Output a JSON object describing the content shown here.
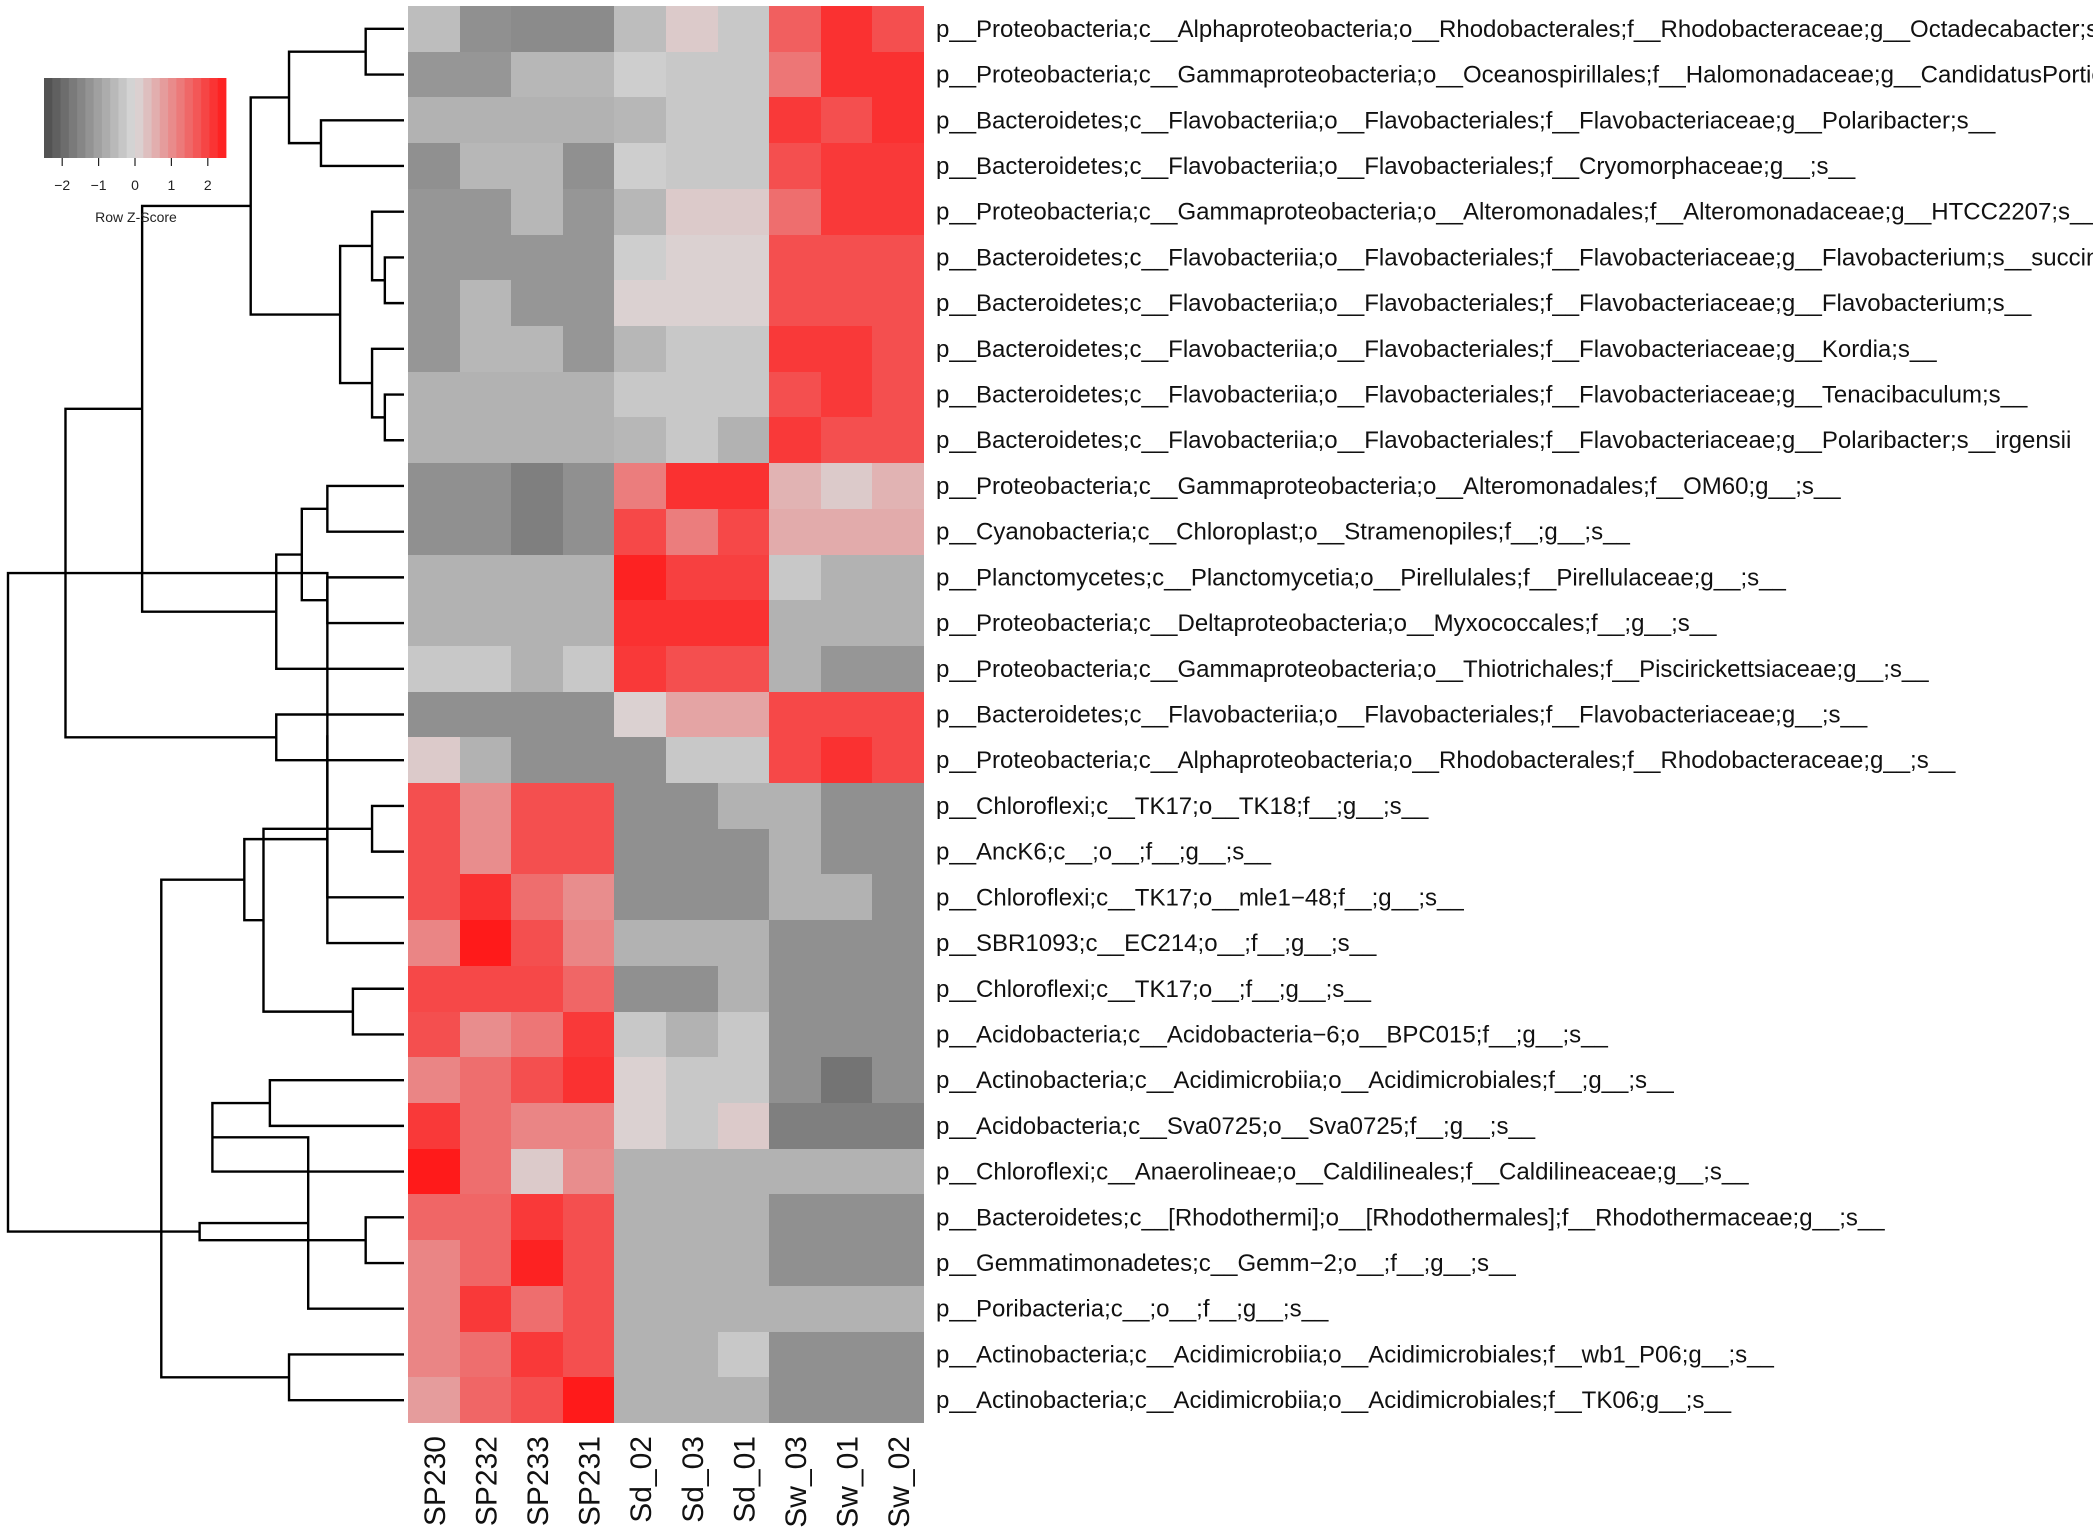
{
  "chart_data": {
    "type": "heatmap",
    "title": "",
    "columns": [
      "SP230",
      "SP232",
      "SP233",
      "SP231",
      "Sd_02",
      "Sd_03",
      "Sd_01",
      "Sw_03",
      "Sw_01",
      "Sw_02"
    ],
    "rows": [
      "p__Proteobacteria;c__Alphaproteobacteria;o__Rhodobacterales;f__Rhodobacteraceae;g__Octadecabacter;s__",
      "p__Proteobacteria;c__Gammaproteobacteria;o__Oceanospirillales;f__Halomonadaceae;g__CandidatusPortiera;s__",
      "p__Bacteroidetes;c__Flavobacteriia;o__Flavobacteriales;f__Flavobacteriaceae;g__Polaribacter;s__",
      "p__Bacteroidetes;c__Flavobacteriia;o__Flavobacteriales;f__Cryomorphaceae;g__;s__",
      "p__Proteobacteria;c__Gammaproteobacteria;o__Alteromonadales;f__Alteromonadaceae;g__HTCC2207;s__",
      "p__Bacteroidetes;c__Flavobacteriia;o__Flavobacteriales;f__Flavobacteriaceae;g__Flavobacterium;s__succinicans",
      "p__Bacteroidetes;c__Flavobacteriia;o__Flavobacteriales;f__Flavobacteriaceae;g__Flavobacterium;s__",
      "p__Bacteroidetes;c__Flavobacteriia;o__Flavobacteriales;f__Flavobacteriaceae;g__Kordia;s__",
      "p__Bacteroidetes;c__Flavobacteriia;o__Flavobacteriales;f__Flavobacteriaceae;g__Tenacibaculum;s__",
      "p__Bacteroidetes;c__Flavobacteriia;o__Flavobacteriales;f__Flavobacteriaceae;g__Polaribacter;s__irgensii",
      "p__Proteobacteria;c__Gammaproteobacteria;o__Alteromonadales;f__OM60;g__;s__",
      "p__Cyanobacteria;c__Chloroplast;o__Stramenopiles;f__;g__;s__",
      "p__Planctomycetes;c__Planctomycetia;o__Pirellulales;f__Pirellulaceae;g__;s__",
      "p__Proteobacteria;c__Deltaproteobacteria;o__Myxococcales;f__;g__;s__",
      "p__Proteobacteria;c__Gammaproteobacteria;o__Thiotrichales;f__Piscirickettsiaceae;g__;s__",
      "p__Bacteroidetes;c__Flavobacteriia;o__Flavobacteriales;f__Flavobacteriaceae;g__;s__",
      "p__Proteobacteria;c__Alphaproteobacteria;o__Rhodobacterales;f__Rhodobacteraceae;g__;s__",
      "p__Chloroflexi;c__TK17;o__TK18;f__;g__;s__",
      "p__AncK6;c__;o__;f__;g__;s__",
      "p__Chloroflexi;c__TK17;o__mle1−48;f__;g__;s__",
      "p__SBR1093;c__EC214;o__;f__;g__;s__",
      "p__Chloroflexi;c__TK17;o__;f__;g__;s__",
      "p__Acidobacteria;c__Acidobacteria−6;o__BPC015;f__;g__;s__",
      "p__Actinobacteria;c__Acidimicrobiia;o__Acidimicrobiales;f__;g__;s__",
      "p__Acidobacteria;c__Sva0725;o__Sva0725;f__;g__;s__",
      "p__Chloroflexi;c__Anaerolineae;o__Caldilineales;f__Caldilineaceae;g__;s__",
      "p__Bacteroidetes;c__[Rhodothermi];o__[Rhodothermales];f__Rhodothermaceae;g__;s__",
      "p__Gemmatimonadetes;c__Gemm−2;o__;f__;g__;s__",
      "p__Poribacteria;c__;o__;f__;g__;s__",
      "p__Actinobacteria;c__Acidimicrobiia;o__Acidimicrobiales;f__wb1_P06;g__;s__",
      "p__Actinobacteria;c__Acidimicrobiia;o__Acidimicrobiales;f__TK06;g__;s__"
    ],
    "values": [
      [
        -0.5,
        -1.3,
        -1.4,
        -1.4,
        -0.5,
        0.2,
        -0.3,
        1.6,
        2.2,
        1.8
      ],
      [
        -1.2,
        -1.2,
        -0.6,
        -0.6,
        -0.2,
        -0.3,
        -0.3,
        1.3,
        2.2,
        2.2
      ],
      [
        -0.7,
        -0.7,
        -0.7,
        -0.7,
        -0.6,
        -0.3,
        -0.3,
        2.1,
        1.8,
        2.2
      ],
      [
        -1.3,
        -0.6,
        -0.6,
        -1.3,
        -0.2,
        -0.3,
        -0.3,
        1.8,
        2.1,
        2.1
      ],
      [
        -1.2,
        -1.2,
        -0.6,
        -1.2,
        -0.6,
        0.2,
        0.2,
        1.4,
        2.1,
        2.1
      ],
      [
        -1.2,
        -1.2,
        -1.2,
        -1.2,
        -0.2,
        0.1,
        0.1,
        1.8,
        1.8,
        1.8
      ],
      [
        -1.2,
        -0.6,
        -1.2,
        -1.2,
        0.1,
        0.1,
        0.1,
        1.8,
        1.8,
        1.8
      ],
      [
        -1.2,
        -0.6,
        -0.6,
        -1.2,
        -0.6,
        -0.3,
        -0.3,
        2.1,
        2.1,
        1.8
      ],
      [
        -0.7,
        -0.7,
        -0.7,
        -0.7,
        -0.3,
        -0.3,
        -0.3,
        1.8,
        2.1,
        1.8
      ],
      [
        -0.7,
        -0.7,
        -0.7,
        -0.7,
        -0.6,
        -0.3,
        -0.7,
        2.1,
        1.8,
        1.8
      ],
      [
        -1.3,
        -1.3,
        -1.6,
        -1.3,
        1.2,
        2.2,
        2.2,
        0.5,
        0.2,
        0.5
      ],
      [
        -1.3,
        -1.3,
        -1.6,
        -1.3,
        1.9,
        1.2,
        1.9,
        0.6,
        0.6,
        0.6
      ],
      [
        -0.7,
        -0.7,
        -0.7,
        -0.7,
        2.4,
        2.0,
        2.0,
        -0.3,
        -0.7,
        -0.7
      ],
      [
        -0.7,
        -0.7,
        -0.7,
        -0.7,
        2.2,
        2.2,
        2.2,
        -0.7,
        -0.7,
        -0.7
      ],
      [
        -0.3,
        -0.3,
        -0.7,
        -0.3,
        2.1,
        1.8,
        1.8,
        -0.7,
        -1.2,
        -1.2
      ],
      [
        -1.3,
        -1.3,
        -1.3,
        -1.3,
        0.1,
        0.7,
        0.7,
        1.9,
        1.9,
        1.9
      ],
      [
        0.2,
        -0.7,
        -1.3,
        -1.3,
        -1.3,
        -0.3,
        -0.3,
        1.9,
        2.2,
        1.9
      ],
      [
        1.8,
        1.0,
        1.8,
        1.8,
        -1.3,
        -1.3,
        -0.7,
        -0.7,
        -1.3,
        -1.3
      ],
      [
        1.8,
        1.0,
        1.8,
        1.8,
        -1.3,
        -1.3,
        -1.3,
        -0.7,
        -1.3,
        -1.3
      ],
      [
        1.8,
        2.2,
        1.4,
        1.0,
        -1.3,
        -1.3,
        -1.3,
        -0.7,
        -0.7,
        -1.3
      ],
      [
        1.1,
        2.5,
        1.8,
        1.1,
        -0.7,
        -0.7,
        -0.7,
        -1.3,
        -1.3,
        -1.3
      ],
      [
        1.9,
        1.9,
        1.9,
        1.5,
        -1.3,
        -1.3,
        -0.7,
        -1.3,
        -1.3,
        -1.3
      ],
      [
        1.8,
        1.0,
        1.3,
        2.1,
        -0.3,
        -0.7,
        -0.3,
        -1.3,
        -1.3,
        -1.3
      ],
      [
        1.1,
        1.4,
        1.8,
        2.2,
        0.1,
        -0.3,
        -0.3,
        -1.3,
        -1.8,
        -1.3
      ],
      [
        2.1,
        1.4,
        1.1,
        1.1,
        0.1,
        -0.3,
        0.2,
        -1.6,
        -1.6,
        -1.6
      ],
      [
        2.8,
        1.4,
        0.2,
        1.0,
        -0.7,
        -0.7,
        -0.7,
        -0.7,
        -0.7,
        -0.7
      ],
      [
        1.5,
        1.5,
        2.1,
        1.8,
        -0.7,
        -0.7,
        -0.7,
        -1.3,
        -1.3,
        -1.3
      ],
      [
        1.1,
        1.5,
        2.4,
        1.8,
        -0.7,
        -0.7,
        -0.7,
        -1.3,
        -1.3,
        -1.3
      ],
      [
        1.1,
        2.1,
        1.4,
        1.8,
        -0.7,
        -0.7,
        -0.7,
        -0.7,
        -0.7,
        -0.7
      ],
      [
        1.1,
        1.4,
        2.1,
        1.8,
        -0.7,
        -0.7,
        -0.3,
        -1.3,
        -1.3,
        -1.3
      ],
      [
        0.8,
        1.5,
        1.8,
        2.5,
        -0.7,
        -0.7,
        -0.7,
        -1.3,
        -1.3,
        -1.3
      ]
    ],
    "row_dendrogram": {
      "leaves": [
        0,
        1,
        2,
        3,
        4,
        5,
        6,
        7,
        8,
        9,
        10,
        11,
        12,
        13,
        14,
        15,
        16,
        17,
        18,
        19,
        20,
        21,
        22,
        23,
        24,
        25,
        26,
        27,
        28,
        29,
        30
      ],
      "merges": [
        [
          0,
          1,
          0.6
        ],
        [
          2,
          3,
          1.3
        ],
        [
          31,
          32,
          1.8
        ],
        [
          5,
          6,
          0.3
        ],
        [
          4,
          34,
          0.5
        ],
        [
          8,
          9,
          0.3
        ],
        [
          7,
          36,
          0.5
        ],
        [
          35,
          37,
          1.0
        ],
        [
          33,
          38,
          2.4
        ],
        [
          10,
          11,
          1.2
        ],
        [
          12,
          13,
          1.2
        ],
        [
          40,
          41,
          1.6
        ],
        [
          42,
          14,
          2.0
        ],
        [
          39,
          43,
          4.1
        ],
        [
          15,
          16,
          2.0
        ],
        [
          44,
          45,
          5.3
        ],
        [
          17,
          18,
          0.5
        ],
        [
          46,
          19,
          1.2
        ],
        [
          21,
          22,
          0.8
        ],
        [
          20,
          48,
          1.2
        ],
        [
          47,
          49,
          2.2
        ],
        [
          23,
          24,
          2.1
        ],
        [
          50,
          51,
          2.5
        ],
        [
          52,
          25,
          3.0
        ],
        [
          26,
          27,
          0.6
        ],
        [
          54,
          28,
          1.5
        ],
        [
          29,
          30,
          1.8
        ],
        [
          55,
          56,
          3.2
        ],
        [
          53,
          57,
          3.8
        ],
        [
          46,
          58,
          6.2
        ]
      ],
      "max_height": 6.2
    },
    "legend": {
      "title": "Row Z-Score",
      "ticks": [
        "−2",
        "−1",
        "0",
        "1",
        "2"
      ],
      "range": [
        -2.5,
        2.5
      ],
      "low_color": "#4d4d4d",
      "mid_color": "#d9d9d9",
      "high_color": "#ff1a1a"
    },
    "xlabel": "",
    "ylabel": ""
  }
}
